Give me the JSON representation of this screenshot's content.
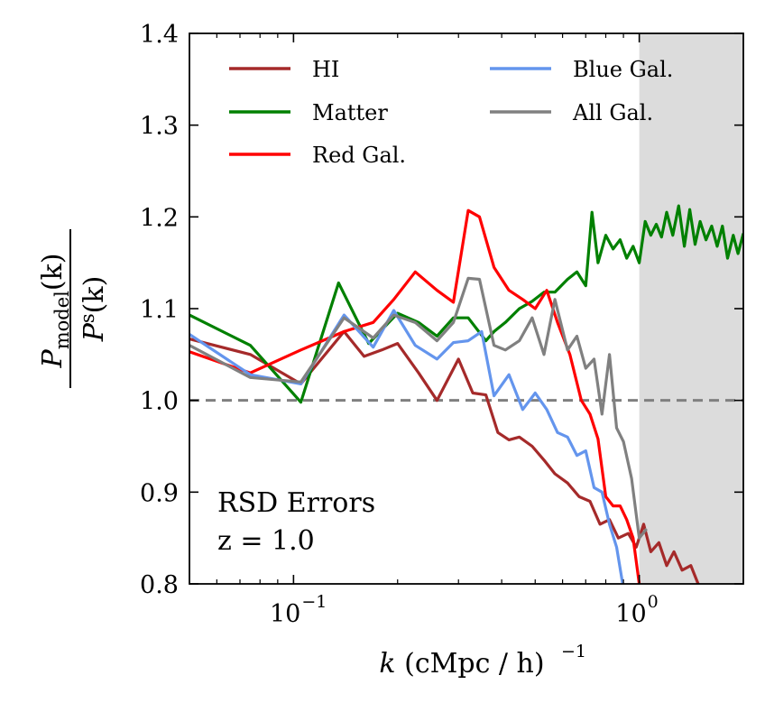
{
  "chart_data": {
    "type": "line",
    "xscale": "log",
    "xlim": [
      0.05,
      2.0
    ],
    "ylim": [
      0.8,
      1.4
    ],
    "yticks": [
      "0.8",
      "0.9",
      "1.0",
      "1.1",
      "1.2",
      "1.3",
      "1.4"
    ],
    "xticks": [
      {
        "base": "10",
        "exp": "−1",
        "value": 0.1
      },
      {
        "base": "10",
        "exp": "0",
        "value": 1.0
      }
    ],
    "xlabel": {
      "k": "k",
      "unit": "(cMpc / h)",
      "exp": "−1"
    },
    "ylabel": {
      "num_P": "P",
      "num_sub": "model",
      "num_arg": "(k)",
      "den_P": "P",
      "den_sup": "s",
      "den_arg": "(k)"
    },
    "annotation": [
      "RSD Errors",
      "z = 1.0"
    ],
    "shaded_region": {
      "x_start": 1.0,
      "x_end": 2.0,
      "color": "#dcdcdc"
    },
    "reference_line": {
      "y": 1.0,
      "style": "dashed",
      "color": "#808080"
    },
    "series": [
      {
        "name": "HI",
        "color": "#a52a2a",
        "x": [
          0.05,
          0.075,
          0.105,
          0.14,
          0.16,
          0.18,
          0.2,
          0.23,
          0.26,
          0.3,
          0.33,
          0.36,
          0.39,
          0.42,
          0.45,
          0.49,
          0.53,
          0.57,
          0.62,
          0.67,
          0.72,
          0.77,
          0.82,
          0.87,
          0.93,
          0.98,
          1.03,
          1.08,
          1.14,
          1.2,
          1.26,
          1.33,
          1.41,
          1.48
        ],
        "y": [
          1.067,
          1.05,
          1.018,
          1.075,
          1.048,
          1.055,
          1.062,
          1.03,
          1.0,
          1.045,
          1.008,
          1.006,
          0.965,
          0.957,
          0.96,
          0.95,
          0.935,
          0.92,
          0.91,
          0.895,
          0.89,
          0.865,
          0.87,
          0.85,
          0.855,
          0.84,
          0.865,
          0.835,
          0.845,
          0.82,
          0.835,
          0.815,
          0.82,
          0.8
        ]
      },
      {
        "name": "Matter",
        "color": "#008000",
        "x": [
          0.05,
          0.075,
          0.105,
          0.135,
          0.165,
          0.2,
          0.23,
          0.26,
          0.29,
          0.32,
          0.36,
          0.38,
          0.41,
          0.45,
          0.49,
          0.53,
          0.57,
          0.62,
          0.66,
          0.7,
          0.73,
          0.76,
          0.8,
          0.84,
          0.88,
          0.92,
          0.96,
          1.0,
          1.04,
          1.08,
          1.12,
          1.16,
          1.2,
          1.25,
          1.3,
          1.35,
          1.4,
          1.45,
          1.5,
          1.56,
          1.62,
          1.68,
          1.74,
          1.8,
          1.87,
          1.93,
          2.0
        ],
        "y": [
          1.093,
          1.06,
          0.998,
          1.128,
          1.062,
          1.095,
          1.085,
          1.07,
          1.09,
          1.09,
          1.065,
          1.075,
          1.085,
          1.1,
          1.108,
          1.118,
          1.118,
          1.132,
          1.14,
          1.125,
          1.205,
          1.15,
          1.18,
          1.165,
          1.175,
          1.155,
          1.168,
          1.15,
          1.195,
          1.18,
          1.192,
          1.178,
          1.205,
          1.18,
          1.212,
          1.168,
          1.208,
          1.17,
          1.195,
          1.175,
          1.19,
          1.168,
          1.19,
          1.155,
          1.18,
          1.16,
          1.182
        ]
      },
      {
        "name": "Red Gal.",
        "color": "#ff0000",
        "x": [
          0.05,
          0.075,
          0.105,
          0.14,
          0.17,
          0.195,
          0.225,
          0.26,
          0.29,
          0.32,
          0.345,
          0.38,
          0.42,
          0.46,
          0.5,
          0.54,
          0.58,
          0.63,
          0.68,
          0.72,
          0.76,
          0.8,
          0.84,
          0.88,
          0.92,
          0.96,
          1.0
        ],
        "y": [
          1.053,
          1.03,
          1.055,
          1.075,
          1.085,
          1.11,
          1.14,
          1.12,
          1.107,
          1.207,
          1.2,
          1.145,
          1.12,
          1.11,
          1.1,
          1.12,
          1.085,
          1.05,
          1.0,
          0.985,
          0.958,
          0.895,
          0.885,
          0.885,
          0.87,
          0.85,
          0.8
        ]
      },
      {
        "name": "Blue Gal.",
        "color": "#6495ed",
        "x": [
          0.05,
          0.075,
          0.105,
          0.14,
          0.17,
          0.195,
          0.225,
          0.26,
          0.29,
          0.32,
          0.35,
          0.38,
          0.42,
          0.46,
          0.5,
          0.54,
          0.58,
          0.62,
          0.66,
          0.7,
          0.74,
          0.78,
          0.82,
          0.86,
          0.9
        ],
        "y": [
          1.072,
          1.028,
          1.018,
          1.093,
          1.058,
          1.098,
          1.06,
          1.045,
          1.063,
          1.065,
          1.075,
          1.005,
          1.028,
          0.99,
          1.008,
          0.99,
          0.965,
          0.96,
          0.94,
          0.945,
          0.905,
          0.9,
          0.865,
          0.84,
          0.795
        ]
      },
      {
        "name": "All Gal.",
        "color": "#808080",
        "x": [
          0.05,
          0.075,
          0.105,
          0.14,
          0.17,
          0.195,
          0.225,
          0.26,
          0.29,
          0.32,
          0.345,
          0.38,
          0.41,
          0.45,
          0.49,
          0.53,
          0.57,
          0.62,
          0.66,
          0.7,
          0.74,
          0.78,
          0.82,
          0.86,
          0.9,
          0.95,
          1.0,
          1.05
        ],
        "y": [
          1.06,
          1.025,
          1.02,
          1.09,
          1.068,
          1.093,
          1.085,
          1.065,
          1.085,
          1.133,
          1.132,
          1.06,
          1.055,
          1.065,
          1.09,
          1.05,
          1.11,
          1.055,
          1.07,
          1.035,
          1.045,
          0.985,
          1.05,
          0.97,
          0.955,
          0.915,
          0.85,
          0.86
        ]
      }
    ],
    "legend": [
      {
        "label": "HI",
        "color": "#a52a2a"
      },
      {
        "label": "Blue Gal.",
        "color": "#6495ed"
      },
      {
        "label": "Matter",
        "color": "#008000"
      },
      {
        "label": "All Gal.",
        "color": "#808080"
      },
      {
        "label": "Red Gal.",
        "color": "#ff0000"
      }
    ]
  }
}
